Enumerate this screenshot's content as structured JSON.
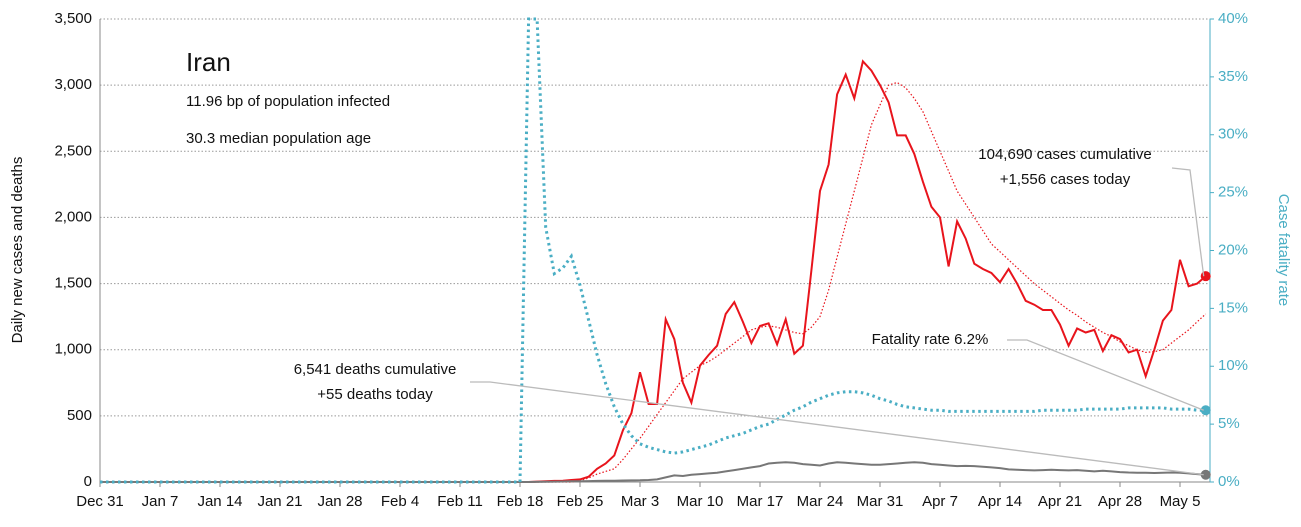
{
  "chart_data": {
    "type": "line",
    "title": "Iran",
    "subtitle": [
      "11.96 bp of population infected",
      "30.3 median population age"
    ],
    "ylabel": "Daily new cases and deaths",
    "y2label": "Case fatality rate",
    "ylim": [
      0,
      3500
    ],
    "yticks": [
      0,
      500,
      {
        "value": 1000,
        "label": "1,000"
      },
      {
        "value": 1500,
        "label": "1,500"
      },
      {
        "value": 2000,
        "label": "2,000"
      },
      {
        "value": 2500,
        "label": "2,500"
      },
      {
        "value": 3000,
        "label": "3,000"
      },
      {
        "value": 3500,
        "label": "3,500"
      }
    ],
    "y2lim": [
      0,
      40
    ],
    "y2ticks": [
      {
        "value": 0,
        "label": "0%"
      },
      {
        "value": 5,
        "label": "5%"
      },
      {
        "value": 10,
        "label": "10%"
      },
      {
        "value": 15,
        "label": "15%"
      },
      {
        "value": 20,
        "label": "20%"
      },
      {
        "value": 25,
        "label": "25%"
      },
      {
        "value": 30,
        "label": "30%"
      },
      {
        "value": 35,
        "label": "35%"
      },
      {
        "value": 40,
        "label": "40%"
      }
    ],
    "grid": true,
    "categories": [
      "Dec 31",
      null,
      null,
      null,
      null,
      null,
      null,
      "Jan 7",
      null,
      null,
      null,
      null,
      null,
      null,
      "Jan 14",
      null,
      null,
      null,
      null,
      null,
      null,
      "Jan 21",
      null,
      null,
      null,
      null,
      null,
      null,
      "Jan 28",
      null,
      null,
      null,
      null,
      null,
      null,
      "Feb 4",
      null,
      null,
      null,
      null,
      null,
      null,
      "Feb 11",
      null,
      null,
      null,
      null,
      null,
      null,
      "Feb 18",
      null,
      null,
      null,
      null,
      null,
      null,
      "Feb 25",
      null,
      null,
      null,
      null,
      null,
      null,
      "Mar 3",
      null,
      null,
      null,
      null,
      null,
      null,
      "Mar 10",
      null,
      null,
      null,
      null,
      null,
      null,
      "Mar 17",
      null,
      null,
      null,
      null,
      null,
      null,
      "Mar 24",
      null,
      null,
      null,
      null,
      null,
      null,
      "Mar 31",
      null,
      null,
      null,
      null,
      null,
      null,
      "Apr 7",
      null,
      null,
      null,
      null,
      null,
      null,
      "Apr 14",
      null,
      null,
      null,
      null,
      null,
      null,
      "Apr 21",
      null,
      null,
      null,
      null,
      null,
      null,
      "Apr 28",
      null,
      null,
      null,
      null,
      null,
      null,
      "May 5",
      null,
      null,
      null
    ],
    "series": [
      {
        "color": "#e8141c",
        "dash": "none",
        "width": 2,
        "marker": true,
        "values": [
          0,
          0,
          0,
          0,
          0,
          0,
          0,
          0,
          0,
          0,
          0,
          0,
          0,
          0,
          0,
          0,
          0,
          0,
          0,
          0,
          0,
          0,
          0,
          0,
          0,
          0,
          0,
          0,
          0,
          0,
          0,
          0,
          0,
          0,
          0,
          0,
          0,
          0,
          0,
          0,
          0,
          0,
          0,
          0,
          0,
          0,
          0,
          0,
          0,
          0,
          0,
          3,
          5,
          8,
          10,
          15,
          20,
          40,
          100,
          140,
          200,
          390,
          520,
          830,
          590,
          590,
          1230,
          1080,
          750,
          600,
          880,
          960,
          1030,
          1270,
          1360,
          1210,
          1050,
          1180,
          1200,
          1040,
          1230,
          970,
          1030,
          1600,
          2200,
          2400,
          2930,
          3080,
          2900,
          3180,
          3110,
          3000,
          2870,
          2620,
          2620,
          2480,
          2270,
          2080,
          2000,
          1630,
          1970,
          1840,
          1650,
          1610,
          1580,
          1510,
          1610,
          1500,
          1370,
          1340,
          1300,
          1300,
          1190,
          1030,
          1160,
          1130,
          1150,
          990,
          1110,
          1080,
          980,
          1000,
          800,
          1000,
          1220,
          1300,
          1680,
          1480,
          1500,
          1556
        ]
      },
      {
        "color": "#e8141c",
        "dash": "1.5 2",
        "width": 1.2,
        "marker": false,
        "values": [
          0,
          0,
          0,
          0,
          0,
          0,
          0,
          0,
          0,
          0,
          0,
          0,
          0,
          0,
          0,
          0,
          0,
          0,
          0,
          0,
          0,
          0,
          0,
          0,
          0,
          0,
          0,
          0,
          0,
          0,
          0,
          0,
          0,
          0,
          0,
          0,
          0,
          0,
          0,
          0,
          0,
          0,
          0,
          0,
          0,
          0,
          0,
          0,
          0,
          0,
          0,
          0,
          0,
          0,
          0,
          0,
          10,
          30,
          60,
          80,
          100,
          170,
          250,
          330,
          420,
          510,
          600,
          690,
          780,
          830,
          880,
          910,
          950,
          1000,
          1050,
          1100,
          1150,
          1170,
          1180,
          1170,
          1150,
          1130,
          1120,
          1170,
          1250,
          1450,
          1700,
          1950,
          2200,
          2450,
          2700,
          2850,
          3000,
          3020,
          2980,
          2900,
          2800,
          2650,
          2500,
          2350,
          2200,
          2100,
          2000,
          1900,
          1800,
          1740,
          1680,
          1620,
          1560,
          1500,
          1450,
          1400,
          1350,
          1300,
          1260,
          1210,
          1170,
          1130,
          1100,
          1060,
          1030,
          1000,
          980,
          985,
          1000,
          1050,
          1100,
          1150,
          1210,
          1270
        ]
      },
      {
        "color": "#777777",
        "dash": "none",
        "width": 2,
        "marker": true,
        "values": [
          0,
          0,
          0,
          0,
          0,
          0,
          0,
          0,
          0,
          0,
          0,
          0,
          0,
          0,
          0,
          0,
          0,
          0,
          0,
          0,
          0,
          0,
          0,
          0,
          0,
          0,
          0,
          0,
          0,
          0,
          0,
          0,
          0,
          0,
          0,
          0,
          0,
          0,
          0,
          0,
          0,
          0,
          0,
          0,
          0,
          0,
          0,
          0,
          0,
          0,
          0,
          1,
          2,
          3,
          4,
          5,
          6,
          7,
          8,
          9,
          10,
          11,
          12,
          13,
          15,
          20,
          35,
          50,
          45,
          55,
          60,
          65,
          70,
          80,
          90,
          100,
          110,
          120,
          140,
          145,
          150,
          145,
          135,
          130,
          125,
          140,
          150,
          145,
          140,
          135,
          130,
          130,
          135,
          140,
          145,
          150,
          145,
          135,
          130,
          125,
          120,
          122,
          120,
          115,
          110,
          105,
          95,
          92,
          90,
          88,
          90,
          92,
          90,
          88,
          90,
          85,
          80,
          85,
          80,
          75,
          72,
          70,
          70,
          68,
          70,
          72,
          70,
          65,
          60,
          55
        ]
      },
      {
        "color": "#4aaec4",
        "dash": "2.5 3.5",
        "width": 3,
        "marker": true,
        "axis": "y2",
        "values": [
          0,
          0,
          0,
          0,
          0,
          0,
          0,
          0,
          0,
          0,
          0,
          0,
          0,
          0,
          0,
          0,
          0,
          0,
          0,
          0,
          0,
          0,
          0,
          0,
          0,
          0,
          0,
          0,
          0,
          0,
          0,
          0,
          0,
          0,
          0,
          0,
          0,
          0,
          0,
          0,
          0,
          0,
          0,
          0,
          0,
          0,
          0,
          0,
          0,
          0,
          40,
          40,
          22,
          18,
          18.5,
          19.5,
          17,
          14,
          11,
          8.5,
          6.5,
          5,
          4,
          3.3,
          3,
          2.8,
          2.6,
          2.5,
          2.6,
          2.8,
          3,
          3.2,
          3.5,
          3.8,
          4,
          4.2,
          4.5,
          4.8,
          5,
          5.4,
          5.8,
          6.2,
          6.5,
          6.9,
          7.2,
          7.5,
          7.7,
          7.8,
          7.8,
          7.7,
          7.5,
          7.2,
          7,
          6.7,
          6.5,
          6.4,
          6.3,
          6.2,
          6.2,
          6.1,
          6.1,
          6.1,
          6.1,
          6.1,
          6.1,
          6.1,
          6.1,
          6.1,
          6.1,
          6.1,
          6.2,
          6.2,
          6.2,
          6.2,
          6.2,
          6.3,
          6.3,
          6.3,
          6.3,
          6.3,
          6.4,
          6.4,
          6.4,
          6.4,
          6.4,
          6.3,
          6.3,
          6.3,
          6.2,
          6.2
        ]
      }
    ],
    "annotations": [
      {
        "lines": [
          "104,690 cases cumulative",
          "+1,556 cases today"
        ],
        "series": 0
      },
      {
        "lines": [
          "Fatality rate 6.2%"
        ],
        "series": 3
      },
      {
        "lines": [
          "6,541 deaths cumulative",
          "+55 deaths today"
        ],
        "series": 2
      }
    ]
  }
}
